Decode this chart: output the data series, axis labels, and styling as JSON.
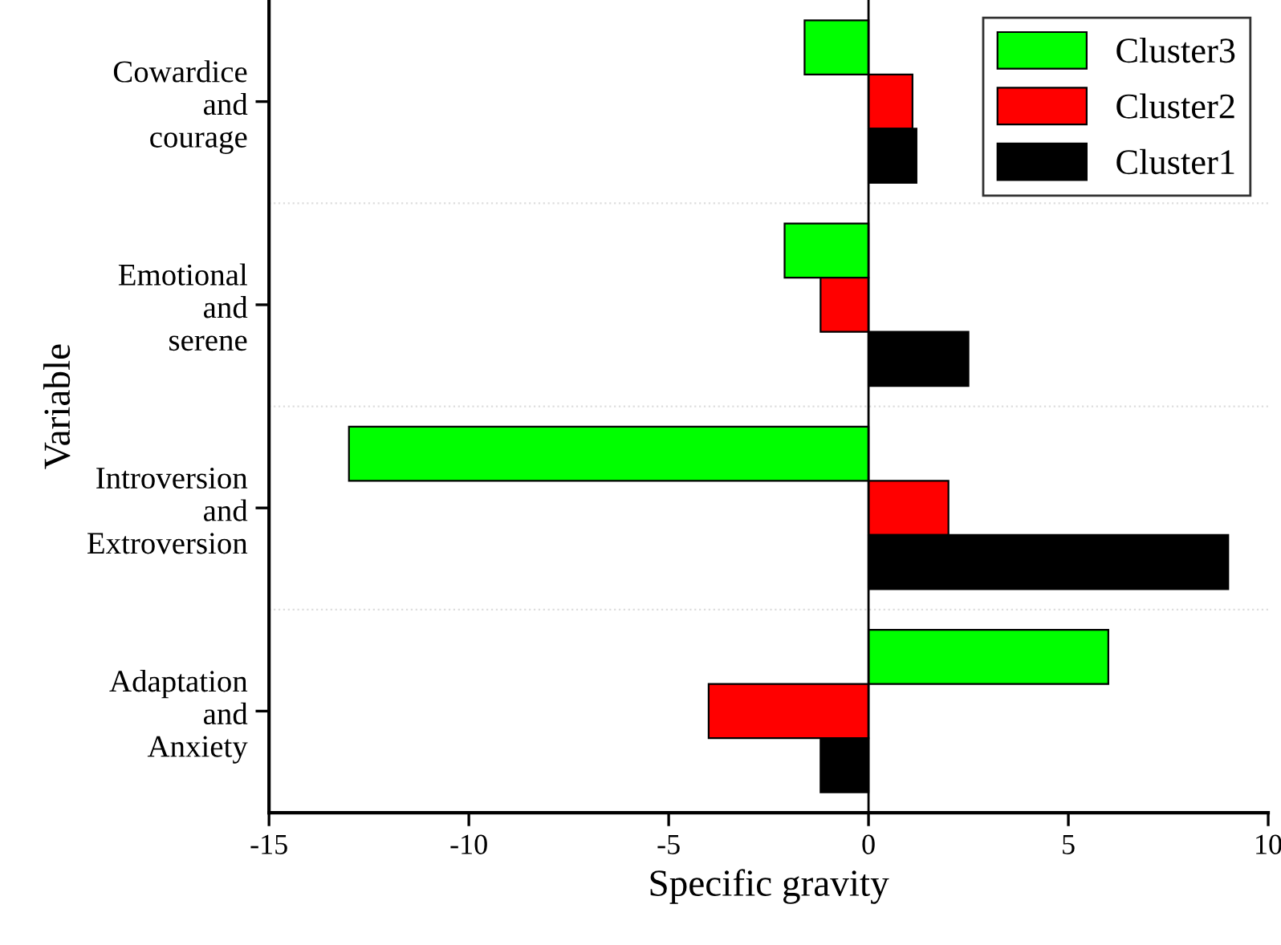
{
  "chart_data": {
    "type": "bar",
    "orientation": "horizontal",
    "xlabel": "Specific gravity",
    "ylabel": "Variable",
    "categories": [
      "Cowardice\nand\ncourage",
      "Emotional\nand\nserene",
      "Introversion\nand\nExtroversion",
      "Adaptation\nand\nAnxiety"
    ],
    "series": [
      {
        "name": "Cluster3",
        "color": "#00ff00",
        "values": [
          -1.6,
          -2.1,
          -13,
          6
        ]
      },
      {
        "name": "Cluster2",
        "color": "#ff0000",
        "values": [
          1.1,
          -1.2,
          2,
          -4
        ]
      },
      {
        "name": "Cluster1",
        "color": "#000000",
        "values": [
          1.2,
          2.5,
          9,
          -1.2
        ]
      }
    ],
    "xlim": [
      -15,
      10
    ],
    "xticks": [
      -15,
      -10,
      -5,
      0,
      5,
      10
    ],
    "grid": false,
    "legend": "top right"
  }
}
